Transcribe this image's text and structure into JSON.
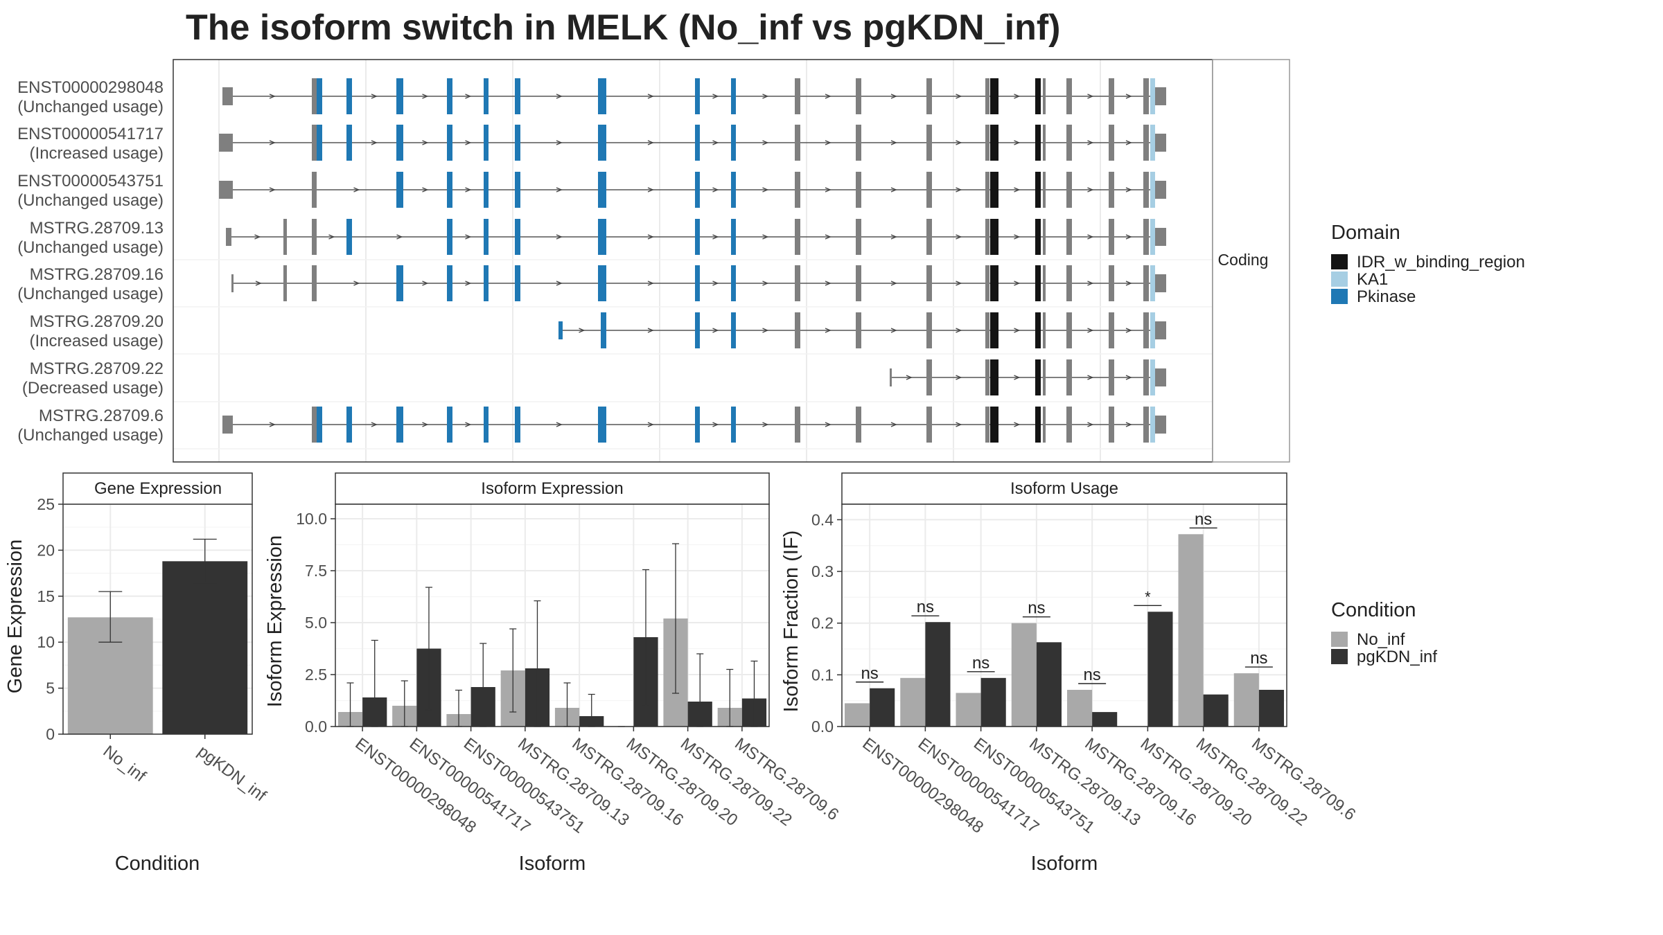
{
  "title": "The isoform switch in MELK (No_inf vs pgKDN_inf)",
  "structure_panel": {
    "strip_label": "Coding",
    "isoforms": [
      {
        "name": "ENST00000298048",
        "usage": "(Unchanged usage)"
      },
      {
        "name": "ENST00000541717",
        "usage": "(Increased usage)"
      },
      {
        "name": "ENST00000543751",
        "usage": "(Unchanged usage)"
      },
      {
        "name": "MSTRG.28709.13",
        "usage": "(Unchanged usage)"
      },
      {
        "name": "MSTRG.28709.16",
        "usage": "(Unchanged usage)"
      },
      {
        "name": "MSTRG.28709.20",
        "usage": "(Increased usage)"
      },
      {
        "name": "MSTRG.28709.22",
        "usage": "(Decreased usage)"
      },
      {
        "name": "MSTRG.28709.6",
        "usage": "(Unchanged usage)"
      }
    ]
  },
  "domain_legend": {
    "title": "Domain",
    "items": [
      {
        "label": "IDR_w_binding_region",
        "color": "#141414"
      },
      {
        "label": "KA1",
        "color": "#a6cee3"
      },
      {
        "label": "Pkinase",
        "color": "#1f78b4"
      }
    ]
  },
  "condition_legend": {
    "title": "Condition",
    "items": [
      {
        "label": "No_inf",
        "color": "#a9a9a9"
      },
      {
        "label": "pgKDN_inf",
        "color": "#333333"
      }
    ]
  },
  "chart_data": [
    {
      "type": "bar",
      "strip": "Gene Expression",
      "xlabel": "Condition",
      "ylabel": "Gene Expression",
      "categories": [
        "No_inf",
        "pgKDN_inf"
      ],
      "values": [
        12.7,
        18.8
      ],
      "error_low": [
        10.0,
        16.4
      ],
      "error_high": [
        15.5,
        21.2
      ],
      "ylim": [
        0,
        25
      ],
      "yticks": [
        "0",
        "5",
        "10",
        "15",
        "20",
        "25"
      ]
    },
    {
      "type": "bar",
      "strip": "Isoform Expression",
      "xlabel": "Isoform",
      "ylabel": "Isoform Expression",
      "categories": [
        "ENST00000298048",
        "ENST00000541717",
        "ENST00000543751",
        "MSTRG.28709.13",
        "MSTRG.28709.16",
        "MSTRG.28709.20",
        "MSTRG.28709.22",
        "MSTRG.28709.6"
      ],
      "ylim": [
        0,
        10.7
      ],
      "yticks": [
        "0.0",
        "2.5",
        "5.0",
        "7.5",
        "10.0"
      ],
      "series": [
        {
          "name": "No_inf",
          "values": [
            0.7,
            1.0,
            0.6,
            2.7,
            0.9,
            0.0,
            5.2,
            0.9
          ],
          "error_low": [
            0,
            0,
            0,
            0.7,
            0,
            0,
            1.6,
            0
          ],
          "error_high": [
            2.1,
            2.2,
            1.75,
            4.7,
            2.1,
            0,
            8.8,
            2.75
          ]
        },
        {
          "name": "pgKDN_inf",
          "values": [
            1.4,
            3.75,
            1.9,
            2.8,
            0.5,
            4.3,
            1.2,
            1.35
          ],
          "error_low": [
            0,
            0.8,
            0,
            0,
            0,
            1.0,
            0,
            0
          ],
          "error_high": [
            4.15,
            6.7,
            4.0,
            6.05,
            1.55,
            7.55,
            3.5,
            3.15
          ]
        }
      ]
    },
    {
      "type": "bar",
      "strip": "Isoform Usage",
      "xlabel": "Isoform",
      "ylabel": "Isoform Fraction (IF)",
      "categories": [
        "ENST00000298048",
        "ENST00000541717",
        "ENST00000543751",
        "MSTRG.28709.13",
        "MSTRG.28709.16",
        "MSTRG.28709.20",
        "MSTRG.28709.22",
        "MSTRG.28709.6"
      ],
      "ylim": [
        0,
        0.43
      ],
      "yticks": [
        "0.0",
        "0.1",
        "0.2",
        "0.3",
        "0.4"
      ],
      "series": [
        {
          "name": "No_inf",
          "values": [
            0.045,
            0.094,
            0.065,
            0.2,
            0.071,
            0.0,
            0.372,
            0.103
          ]
        },
        {
          "name": "pgKDN_inf",
          "values": [
            0.074,
            0.202,
            0.094,
            0.163,
            0.028,
            0.222,
            0.062,
            0.071
          ]
        }
      ],
      "significance": [
        "ns",
        "ns",
        "ns",
        "ns",
        "ns",
        "*",
        "ns",
        "ns"
      ]
    }
  ]
}
